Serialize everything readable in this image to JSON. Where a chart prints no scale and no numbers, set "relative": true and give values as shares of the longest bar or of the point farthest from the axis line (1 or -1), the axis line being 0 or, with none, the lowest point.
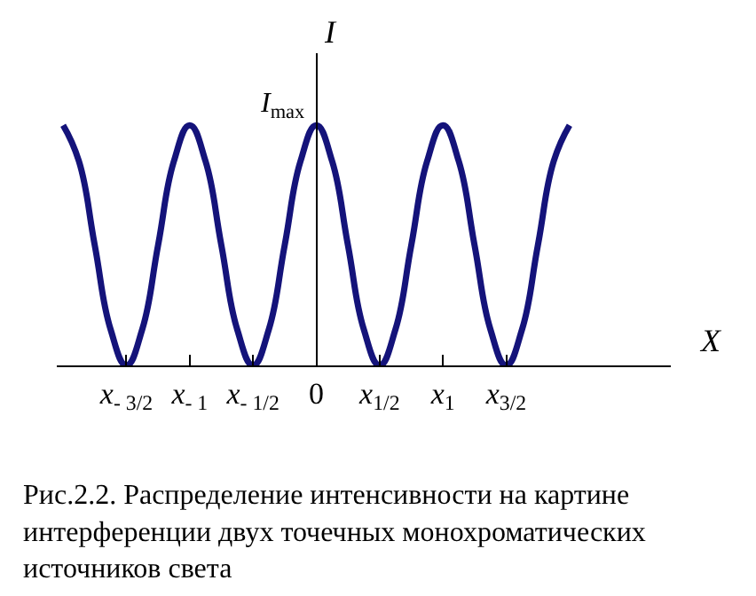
{
  "chart_data": {
    "type": "line",
    "relative": true,
    "xlabel": "X",
    "ylabel": "I",
    "x": [
      -2,
      -1.875,
      -1.75,
      -1.625,
      -1.5,
      -1.375,
      -1.25,
      -1.125,
      -1,
      -0.875,
      -0.75,
      -0.625,
      -0.5,
      -0.375,
      -0.25,
      -0.125,
      0,
      0.125,
      0.25,
      0.375,
      0.5,
      0.625,
      0.75,
      0.875,
      1,
      1.125,
      1.25,
      1.375,
      1.5,
      1.625,
      1.75,
      1.875,
      2
    ],
    "series": [
      {
        "color": "#14137a",
        "values": [
          1,
          0.85,
          0.5,
          0.15,
          0,
          0.15,
          0.5,
          0.85,
          1,
          0.85,
          0.5,
          0.15,
          0,
          0.15,
          0.5,
          0.85,
          1,
          0.85,
          0.5,
          0.15,
          0,
          0.15,
          0.5,
          0.85,
          1,
          0.85,
          0.5,
          0.15,
          0,
          0.15,
          0.5,
          0.85,
          1
        ]
      }
    ],
    "xlim": [
      -2.05,
      2.8
    ],
    "xticks": [
      {
        "value": -1.5,
        "label": "x$_{- 3/2}$"
      },
      {
        "value": -1,
        "label": "x$_{- 1}$"
      },
      {
        "value": -0.5,
        "label": "x$_{- 1/2}$"
      },
      0,
      {
        "value": 0.5,
        "label": "x$_{1/2}$"
      },
      {
        "value": 1,
        "label": "x$_{1}$"
      },
      {
        "value": 1.5,
        "label": "x$_{3/2}$"
      }
    ],
    "tick_labels": "x",
    "marker": "none",
    "line_style": "solid",
    "annotations": [
      {
        "text": "I$_{max}$",
        "x": 0,
        "y": 1
      },
      "Рис.2.2. Распределение интенсивности на картине интерференции двух точечных монохроматических источников света"
    ]
  }
}
